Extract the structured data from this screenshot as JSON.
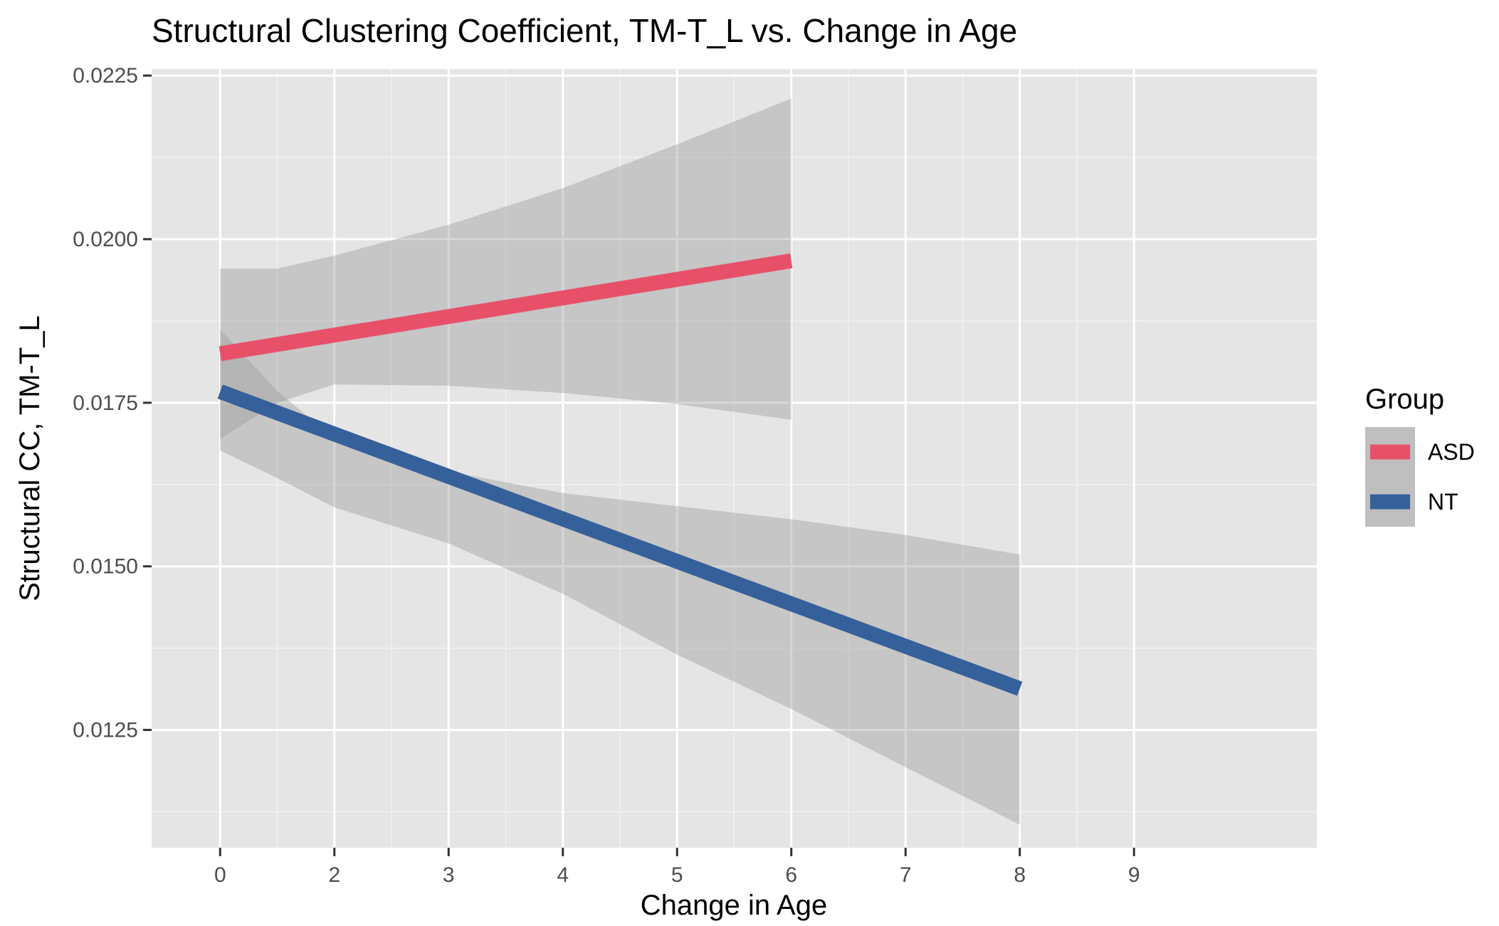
{
  "chart_data": {
    "type": "line",
    "title": "Structural Clustering Coefficient, TM-T_L vs. Change in Age",
    "xlabel": "Change in Age",
    "ylabel": "Structural CC, TM-T_L",
    "xlim": [
      -0.6,
      9.6
    ],
    "ylim": [
      0.0107,
      0.0226
    ],
    "x_ticks": [
      0,
      2,
      3,
      4,
      5,
      6,
      7,
      8,
      9
    ],
    "x_tick_positions": [
      0,
      1,
      2,
      3,
      4,
      5,
      6,
      7,
      8
    ],
    "x_tick_labels": [
      "0",
      "2",
      "3",
      "4",
      "5",
      "6",
      "7",
      "8",
      "9"
    ],
    "y_ticks": [
      0.0125,
      0.015,
      0.0175,
      0.02,
      0.0225
    ],
    "y_tick_labels": [
      "0.0125",
      "0.0150",
      "0.0175",
      "0.0200",
      "0.0225"
    ],
    "grid": true,
    "legend": {
      "title": "Group",
      "position": "right"
    },
    "series": [
      {
        "name": "ASD",
        "color": "#e8506a",
        "x": [
          0,
          6
        ],
        "y": [
          0.01825,
          0.01967
        ],
        "ci_band": {
          "x": [
            0,
            1,
            2,
            3,
            4,
            5,
            6
          ],
          "lower": [
            0.01695,
            0.0175,
            0.01778,
            0.01776,
            0.01765,
            0.01748,
            0.01724
          ],
          "upper": [
            0.01955,
            0.01955,
            0.01975,
            0.02022,
            0.02078,
            0.02145,
            0.02215
          ]
        }
      },
      {
        "name": "NT",
        "color": "#36609a",
        "x": [
          0,
          8
        ],
        "y": [
          0.01767,
          0.01313
        ],
        "ci_band": {
          "x": [
            0,
            1,
            2,
            3,
            4,
            5,
            6,
            7,
            8
          ],
          "lower": [
            0.01677,
            0.01635,
            0.0159,
            0.01535,
            0.01458,
            0.01365,
            0.01282,
            0.01193,
            0.01105
          ],
          "upper": [
            0.01862,
            0.01768,
            0.01695,
            0.01645,
            0.01612,
            0.01592,
            0.01572,
            0.01548,
            0.01518
          ]
        }
      }
    ]
  }
}
